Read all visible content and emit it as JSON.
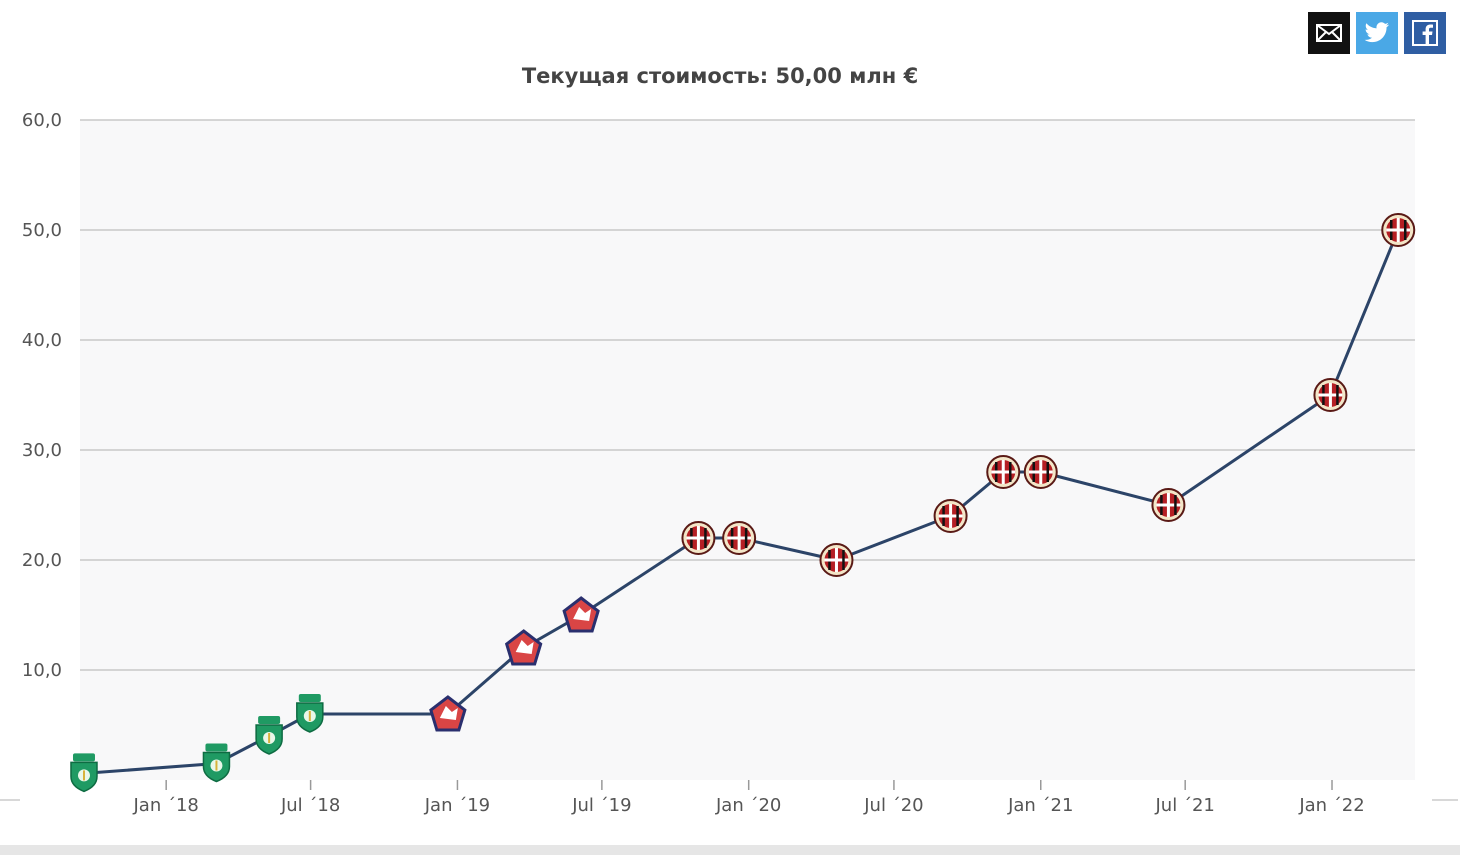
{
  "share": {
    "mail_icon": "envelope-icon",
    "twitter_icon": "twitter-bird-icon",
    "facebook_icon": "facebook-f-icon"
  },
  "chart_data": {
    "type": "line",
    "title": "Текущая стоимость: 50,00 млн €",
    "xlabel": "",
    "ylabel": "",
    "ylim": [
      0,
      60
    ],
    "y_ticks": [
      "60,0",
      "50,0",
      "40,0",
      "30,0",
      "20,0",
      "10,0"
    ],
    "x_ticks": [
      "Jan ´18",
      "Jul ´18",
      "Jan ´19",
      "Jul ´19",
      "Jan ´20",
      "Jul ´20",
      "Jan ´21",
      "Jul ´21",
      "Jan ´22"
    ],
    "x_range": [
      "2017-09-15",
      "2022-04-15"
    ],
    "grid": true,
    "colors": {
      "line": "#2c4468",
      "plot_bg": "#f8f8f9",
      "grid": "#c8c8c8",
      "sporting": "#1f9a63",
      "lille": "#d94545",
      "lille_border": "#2a2f6e",
      "milan": "#b51f24"
    },
    "points": [
      {
        "x": "2017-09-20",
        "y": 0.6,
        "club": "Sporting CP"
      },
      {
        "x": "2018-03-05",
        "y": 1.5,
        "club": "Sporting CP"
      },
      {
        "x": "2018-05-10",
        "y": 4.0,
        "club": "Sporting CP"
      },
      {
        "x": "2018-06-30",
        "y": 6.0,
        "club": "Sporting CP"
      },
      {
        "x": "2018-12-20",
        "y": 6.0,
        "club": "Lille"
      },
      {
        "x": "2019-03-25",
        "y": 12.0,
        "club": "Lille"
      },
      {
        "x": "2019-06-05",
        "y": 15.0,
        "club": "Lille"
      },
      {
        "x": "2019-10-30",
        "y": 22.0,
        "club": "AC Milan"
      },
      {
        "x": "2019-12-20",
        "y": 22.0,
        "club": "AC Milan"
      },
      {
        "x": "2020-04-20",
        "y": 20.0,
        "club": "AC Milan"
      },
      {
        "x": "2020-09-10",
        "y": 24.0,
        "club": "AC Milan"
      },
      {
        "x": "2020-11-15",
        "y": 28.0,
        "club": "AC Milan"
      },
      {
        "x": "2021-01-01",
        "y": 28.0,
        "club": "AC Milan"
      },
      {
        "x": "2021-06-10",
        "y": 25.0,
        "club": "AC Milan"
      },
      {
        "x": "2021-12-30",
        "y": 35.0,
        "club": "AC Milan"
      },
      {
        "x": "2022-03-25",
        "y": 50.0,
        "club": "AC Milan"
      }
    ]
  }
}
